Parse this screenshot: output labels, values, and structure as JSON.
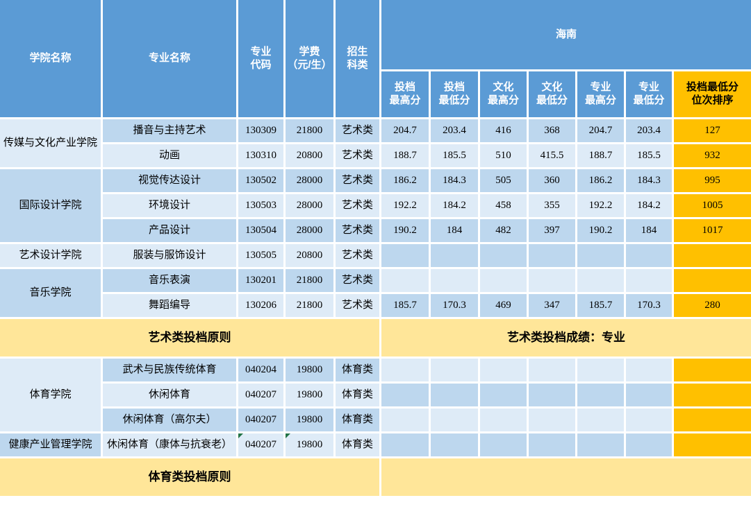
{
  "colors": {
    "header_blue": "#5B9BD5",
    "row_dark_blue": "#BDD7EE",
    "row_light_blue": "#DEEBF7",
    "rank_orange": "#FFC000",
    "banner_yellow": "#FFE699",
    "error_indicator_green": "#217346",
    "header_text": "#FFFFFF",
    "body_text": "#000000"
  },
  "table": {
    "header": {
      "college": "学院名称",
      "major": "专业名称",
      "code": "专业\n代码",
      "fee": "学费\n（元/生）",
      "category": "招生\n科类",
      "region": "海南",
      "sub": [
        "投档\n最高分",
        "投档\n最低分",
        "文化\n最高分",
        "文化\n最低分",
        "专业\n最高分",
        "专业\n最低分"
      ],
      "rank": "投档最低分\n位次排序"
    },
    "colleges": [
      {
        "name": "传媒与文化产业学院",
        "grid_rows": [
          3,
          4
        ],
        "shade": "light"
      },
      {
        "name": "国际设计学院",
        "grid_rows": [
          5,
          7
        ],
        "shade": "dark"
      },
      {
        "name": "艺术设计学院",
        "grid_rows": [
          8,
          8
        ],
        "shade": "light"
      },
      {
        "name": "音乐学院",
        "grid_rows": [
          9,
          10
        ],
        "shade": "dark"
      },
      {
        "name": "体育学院",
        "grid_rows": [
          12,
          14
        ],
        "shade": "light"
      },
      {
        "name": "健康产业管理学院",
        "grid_rows": [
          15,
          15
        ],
        "shade": "dark"
      }
    ],
    "rows": [
      {
        "grid_row": 3,
        "major": "播音与主持艺术",
        "code": "130309",
        "fee": "21800",
        "category": "艺术类",
        "scores": [
          "204.7",
          "203.4",
          "416",
          "368",
          "204.7",
          "203.4"
        ],
        "rank": "127",
        "left": "dark",
        "right": "dark"
      },
      {
        "grid_row": 4,
        "major": "动画",
        "code": "130310",
        "fee": "20800",
        "category": "艺术类",
        "scores": [
          "188.7",
          "185.5",
          "510",
          "415.5",
          "188.7",
          "185.5"
        ],
        "rank": "932",
        "left": "light",
        "right": "light"
      },
      {
        "grid_row": 5,
        "major": "视觉传达设计",
        "code": "130502",
        "fee": "28000",
        "category": "艺术类",
        "scores": [
          "186.2",
          "184.3",
          "505",
          "360",
          "186.2",
          "184.3"
        ],
        "rank": "995",
        "left": "dark",
        "right": "dark"
      },
      {
        "grid_row": 6,
        "major": "环境设计",
        "code": "130503",
        "fee": "28000",
        "category": "艺术类",
        "scores": [
          "192.2",
          "184.2",
          "458",
          "355",
          "192.2",
          "184.2"
        ],
        "rank": "1005",
        "left": "light",
        "right": "light"
      },
      {
        "grid_row": 7,
        "major": "产品设计",
        "code": "130504",
        "fee": "28000",
        "category": "艺术类",
        "scores": [
          "190.2",
          "184",
          "482",
          "397",
          "190.2",
          "184"
        ],
        "rank": "1017",
        "left": "dark",
        "right": "dark"
      },
      {
        "grid_row": 8,
        "major": "服装与服饰设计",
        "code": "130505",
        "fee": "20800",
        "category": "艺术类",
        "scores": [
          "",
          "",
          "",
          "",
          "",
          ""
        ],
        "rank": "",
        "left": "light",
        "right": "dark"
      },
      {
        "grid_row": 9,
        "major": "音乐表演",
        "code": "130201",
        "fee": "21800",
        "category": "艺术类",
        "scores": [
          "",
          "",
          "",
          "",
          "",
          ""
        ],
        "rank": "",
        "left": "dark",
        "right": "light"
      },
      {
        "grid_row": 10,
        "major": "舞蹈编导",
        "code": "130206",
        "fee": "21800",
        "category": "艺术类",
        "scores": [
          "185.7",
          "170.3",
          "469",
          "347",
          "185.7",
          "170.3"
        ],
        "rank": "280",
        "left": "light",
        "right": "dark"
      },
      {
        "grid_row": 12,
        "major": "武术与民族传统体育",
        "code": "040204",
        "fee": "19800",
        "category": "体育类",
        "scores": [
          "",
          "",
          "",
          "",
          "",
          ""
        ],
        "rank": "",
        "left": "dark",
        "right": "light"
      },
      {
        "grid_row": 13,
        "major": "休闲体育",
        "code": "040207",
        "fee": "19800",
        "category": "体育类",
        "scores": [
          "",
          "",
          "",
          "",
          "",
          ""
        ],
        "rank": "",
        "left": "light",
        "right": "dark"
      },
      {
        "grid_row": 14,
        "major": "休闲体育（高尔夫）",
        "code": "040207",
        "fee": "19800",
        "category": "体育类",
        "scores": [
          "",
          "",
          "",
          "",
          "",
          ""
        ],
        "rank": "",
        "left": "dark",
        "right": "light"
      },
      {
        "grid_row": 15,
        "major": "休闲体育（康体与抗衰老）",
        "code": "040207",
        "fee": "19800",
        "category": "体育类",
        "scores": [
          "",
          "",
          "",
          "",
          "",
          ""
        ],
        "rank": "",
        "left": "light",
        "right": "dark",
        "code_flag": true,
        "fee_flag": true
      }
    ],
    "banners": {
      "art": {
        "row": 11,
        "left": "艺术类投档原则",
        "right": "艺术类投档成绩：专业"
      },
      "sports": {
        "row": 16,
        "left": "体育类投档原则",
        "right": ""
      }
    }
  }
}
